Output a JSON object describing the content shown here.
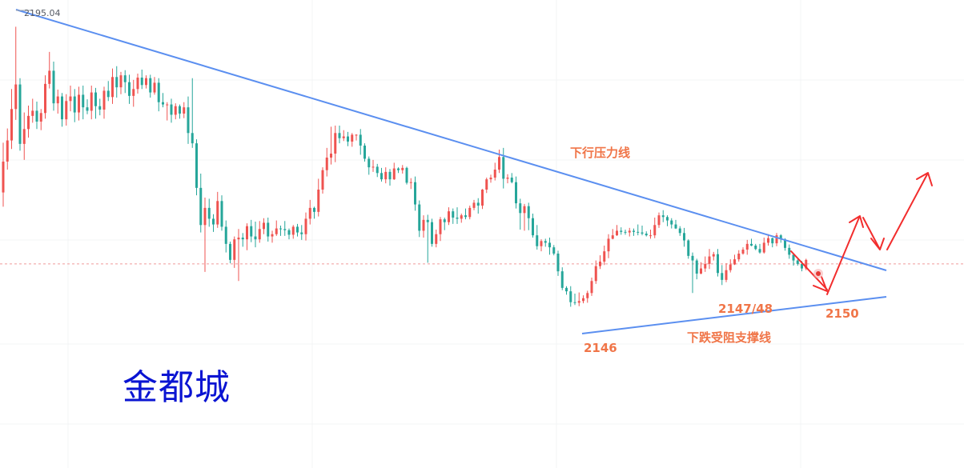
{
  "watermark": "金都城",
  "chart_data": {
    "type": "candlestick",
    "y_domain": [
      2142.0,
      2198.0
    ],
    "high_marker": {
      "label": "2195.04",
      "value": 2195.04
    },
    "current_price_line": 2153.5,
    "colors": {
      "up": "#ef5350",
      "down": "#26a69a",
      "trendline": "#5b8ff0",
      "annotation": "#f07548",
      "forecast_arrow": "#f22d2d",
      "price_line": "#ef9a9a",
      "grid": "#f3f4f6"
    },
    "candles": [
      [
        2166.0,
        2171.4,
        2163.5,
        2174.7
      ],
      [
        2171.4,
        2175.1,
        2170.0,
        2177.2
      ],
      [
        2175.1,
        2180.6,
        2173.6,
        2184.1
      ],
      [
        2180.6,
        2184.9,
        2178.7,
        2195.0
      ],
      [
        2184.9,
        2174.5,
        2173.3,
        2186.0
      ],
      [
        2174.5,
        2177.1,
        2171.7,
        2180.0
      ],
      [
        2177.1,
        2179.4,
        2175.6,
        2181.2
      ],
      [
        2179.4,
        2180.3,
        2178.2,
        2182.4
      ],
      [
        2180.3,
        2178.4,
        2177.1,
        2181.9
      ],
      [
        2178.4,
        2179.9,
        2176.9,
        2180.6
      ],
      [
        2179.9,
        2185.0,
        2178.9,
        2186.5
      ],
      [
        2185.0,
        2187.3,
        2184.2,
        2190.6
      ],
      [
        2187.3,
        2181.6,
        2180.3,
        2188.9
      ],
      [
        2181.6,
        2182.8,
        2179.8,
        2184.0
      ],
      [
        2182.8,
        2178.8,
        2177.5,
        2183.4
      ],
      [
        2178.8,
        2182.0,
        2177.7,
        2183.2
      ],
      [
        2182.0,
        2182.8,
        2180.2,
        2184.7
      ],
      [
        2182.8,
        2180.0,
        2178.3,
        2184.1
      ],
      [
        2180.0,
        2183.1,
        2178.6,
        2184.5
      ],
      [
        2183.1,
        2180.9,
        2178.8,
        2184.7
      ],
      [
        2180.9,
        2180.3,
        2179.7,
        2182.3
      ],
      [
        2180.3,
        2183.5,
        2178.8,
        2184.7
      ],
      [
        2183.5,
        2181.1,
        2178.9,
        2184.3
      ],
      [
        2181.1,
        2180.5,
        2179.5,
        2182.4
      ],
      [
        2180.5,
        2183.8,
        2178.9,
        2184.5
      ],
      [
        2183.8,
        2182.7,
        2182.0,
        2185.5
      ],
      [
        2182.7,
        2186.2,
        2181.5,
        2187.7
      ],
      [
        2186.2,
        2184.4,
        2182.6,
        2188.1
      ],
      [
        2184.4,
        2186.5,
        2183.2,
        2187.1
      ],
      [
        2186.5,
        2185.3,
        2183.4,
        2187.4
      ],
      [
        2185.3,
        2182.9,
        2181.5,
        2186.6
      ],
      [
        2182.9,
        2184.1,
        2181.0,
        2185.7
      ],
      [
        2184.1,
        2186.1,
        2183.3,
        2186.8
      ],
      [
        2186.1,
        2184.8,
        2184.1,
        2187.5
      ],
      [
        2184.8,
        2186.0,
        2184.2,
        2186.5
      ],
      [
        2186.0,
        2183.5,
        2182.6,
        2186.6
      ],
      [
        2183.5,
        2185.2,
        2183.1,
        2186.2
      ],
      [
        2185.2,
        2181.8,
        2180.2,
        2186.0
      ],
      [
        2181.8,
        2181.4,
        2180.9,
        2183.4
      ],
      [
        2181.4,
        2181.4,
        2178.6,
        2181.8
      ],
      [
        2181.4,
        2179.6,
        2178.2,
        2182.4
      ],
      [
        2179.6,
        2181.1,
        2178.8,
        2181.6
      ],
      [
        2181.1,
        2179.8,
        2178.9,
        2181.4
      ],
      [
        2179.8,
        2180.9,
        2179.0,
        2181.8
      ],
      [
        2180.9,
        2176.4,
        2174.5,
        2182.8
      ],
      [
        2176.4,
        2174.6,
        2173.8,
        2186.0
      ],
      [
        2174.6,
        2166.8,
        2165.5,
        2175.3
      ],
      [
        2166.8,
        2160.3,
        2159.0,
        2169.3
      ],
      [
        2160.3,
        2163.3,
        2152.1,
        2165.1
      ],
      [
        2163.3,
        2161.4,
        2160.0,
        2164.9
      ],
      [
        2161.4,
        2160.4,
        2159.1,
        2162.2
      ],
      [
        2160.4,
        2164.5,
        2159.8,
        2166.1
      ],
      [
        2164.5,
        2160.0,
        2159.3,
        2165.5
      ],
      [
        2160.0,
        2157.0,
        2155.5,
        2161.1
      ],
      [
        2157.0,
        2154.2,
        2153.6,
        2157.4
      ],
      [
        2154.2,
        2157.8,
        2152.8,
        2158.3
      ],
      [
        2157.8,
        2158.1,
        2150.5,
        2159.6
      ],
      [
        2158.1,
        2157.8,
        2156.5,
        2158.9
      ],
      [
        2157.8,
        2160.1,
        2155.9,
        2160.6
      ],
      [
        2160.1,
        2158.3,
        2157.3,
        2161.2
      ],
      [
        2158.3,
        2157.8,
        2156.4,
        2160.9
      ],
      [
        2157.8,
        2159.6,
        2157.2,
        2161.0
      ],
      [
        2159.6,
        2160.7,
        2158.7,
        2161.5
      ],
      [
        2160.7,
        2158.3,
        2157.4,
        2161.6
      ],
      [
        2158.3,
        2158.7,
        2157.2,
        2159.3
      ],
      [
        2158.7,
        2159.7,
        2158.4,
        2161.1
      ],
      [
        2159.7,
        2159.6,
        2158.4,
        2160.2
      ],
      [
        2159.6,
        2159.4,
        2158.4,
        2161.0
      ],
      [
        2159.4,
        2158.6,
        2157.8,
        2159.7
      ],
      [
        2158.6,
        2160.0,
        2157.9,
        2160.3
      ],
      [
        2160.0,
        2159.0,
        2158.3,
        2160.5
      ],
      [
        2159.0,
        2158.7,
        2157.7,
        2160.3
      ],
      [
        2158.7,
        2161.4,
        2157.6,
        2162.5
      ],
      [
        2161.4,
        2163.3,
        2160.4,
        2164.7
      ],
      [
        2163.3,
        2162.6,
        2161.4,
        2163.5
      ],
      [
        2162.6,
        2166.5,
        2161.8,
        2168.4
      ],
      [
        2166.5,
        2169.9,
        2165.8,
        2170.4
      ],
      [
        2169.9,
        2172.1,
        2168.8,
        2173.8
      ],
      [
        2172.1,
        2172.8,
        2170.9,
        2177.5
      ],
      [
        2172.8,
        2176.4,
        2171.3,
        2177.7
      ],
      [
        2176.4,
        2175.5,
        2174.6,
        2177.7
      ],
      [
        2175.5,
        2175.8,
        2175.0,
        2176.9
      ],
      [
        2175.8,
        2174.9,
        2174.1,
        2176.6
      ],
      [
        2174.9,
        2176.1,
        2174.0,
        2176.4
      ],
      [
        2176.1,
        2176.1,
        2175.1,
        2176.2
      ],
      [
        2176.1,
        2174.2,
        2172.6,
        2177.1
      ],
      [
        2174.2,
        2171.9,
        2171.4,
        2174.6
      ],
      [
        2171.9,
        2170.4,
        2169.1,
        2172.3
      ],
      [
        2170.4,
        2170.5,
        2169.6,
        2171.7
      ],
      [
        2170.5,
        2169.4,
        2168.7,
        2171.0
      ],
      [
        2169.4,
        2168.3,
        2167.9,
        2170.3
      ],
      [
        2168.3,
        2169.6,
        2167.6,
        2170.4
      ],
      [
        2169.6,
        2168.3,
        2167.2,
        2170.1
      ],
      [
        2168.3,
        2170.2,
        2168.2,
        2171.2
      ],
      [
        2170.2,
        2169.9,
        2169.4,
        2170.4
      ],
      [
        2169.9,
        2170.3,
        2169.3,
        2170.8
      ],
      [
        2170.3,
        2167.7,
        2167.4,
        2170.5
      ],
      [
        2167.7,
        2167.8,
        2166.6,
        2168.5
      ],
      [
        2167.8,
        2163.9,
        2162.8,
        2168.8
      ],
      [
        2163.9,
        2159.3,
        2158.2,
        2164.6
      ],
      [
        2159.3,
        2161.2,
        2158.1,
        2162.0
      ],
      [
        2161.2,
        2160.8,
        2153.7,
        2162.1
      ],
      [
        2160.8,
        2157.0,
        2156.5,
        2161.4
      ],
      [
        2157.0,
        2158.7,
        2156.4,
        2159.5
      ],
      [
        2158.7,
        2161.3,
        2157.5,
        2161.7
      ],
      [
        2161.3,
        2160.8,
        2159.4,
        2161.6
      ],
      [
        2160.8,
        2162.7,
        2160.3,
        2163.4
      ],
      [
        2162.7,
        2161.6,
        2160.5,
        2163.2
      ],
      [
        2161.6,
        2161.4,
        2160.5,
        2163.4
      ],
      [
        2161.4,
        2162.0,
        2160.7,
        2162.3
      ],
      [
        2162.0,
        2161.7,
        2161.3,
        2163.2
      ],
      [
        2161.7,
        2163.3,
        2161.3,
        2163.7
      ],
      [
        2163.3,
        2164.2,
        2162.9,
        2164.7
      ],
      [
        2164.2,
        2163.7,
        2162.3,
        2165.0
      ],
      [
        2163.7,
        2166.5,
        2163.1,
        2166.6
      ],
      [
        2166.5,
        2168.3,
        2165.9,
        2168.6
      ],
      [
        2168.3,
        2168.6,
        2167.7,
        2169.1
      ],
      [
        2168.6,
        2170.0,
        2168.1,
        2171.2
      ],
      [
        2170.0,
        2172.2,
        2169.4,
        2173.5
      ],
      [
        2172.2,
        2168.4,
        2166.7,
        2173.8
      ],
      [
        2168.4,
        2168.6,
        2167.6,
        2169.2
      ],
      [
        2168.6,
        2167.8,
        2167.6,
        2169.4
      ],
      [
        2167.8,
        2164.1,
        2163.2,
        2168.8
      ],
      [
        2164.1,
        2162.4,
        2159.5,
        2164.9
      ],
      [
        2162.4,
        2163.6,
        2159.3,
        2164.0
      ],
      [
        2163.6,
        2161.5,
        2159.4,
        2164.2
      ],
      [
        2161.5,
        2158.5,
        2158.1,
        2162.3
      ],
      [
        2158.5,
        2156.6,
        2156.0,
        2160.3
      ],
      [
        2156.6,
        2157.5,
        2155.7,
        2157.8
      ],
      [
        2157.5,
        2157.2,
        2156.5,
        2157.9
      ],
      [
        2157.2,
        2156.4,
        2155.1,
        2158.1
      ],
      [
        2156.4,
        2155.3,
        2155.0,
        2156.8
      ],
      [
        2155.3,
        2152.2,
        2151.4,
        2155.8
      ],
      [
        2152.2,
        2149.3,
        2148.9,
        2152.9
      ],
      [
        2149.3,
        2148.7,
        2148.1,
        2149.6
      ],
      [
        2148.7,
        2146.8,
        2146.0,
        2149.6
      ],
      [
        2146.8,
        2146.7,
        2146.3,
        2148.3
      ],
      [
        2146.7,
        2147.0,
        2146.1,
        2148.5
      ],
      [
        2147.0,
        2147.5,
        2146.6,
        2148.0
      ],
      [
        2147.5,
        2148.4,
        2146.7,
        2148.8
      ],
      [
        2148.4,
        2150.5,
        2147.9,
        2151.1
      ],
      [
        2150.5,
        2153.1,
        2150.0,
        2154.1
      ],
      [
        2153.1,
        2153.9,
        2152.6,
        2155.0
      ],
      [
        2153.9,
        2155.7,
        2153.3,
        2156.7
      ],
      [
        2155.7,
        2157.9,
        2154.5,
        2158.7
      ],
      [
        2157.9,
        2158.5,
        2157.8,
        2159.6
      ],
      [
        2158.5,
        2159.3,
        2158.4,
        2160.3
      ],
      [
        2159.3,
        2159.1,
        2158.6,
        2159.9
      ],
      [
        2159.1,
        2159.0,
        2158.6,
        2159.5
      ],
      [
        2159.0,
        2159.3,
        2158.3,
        2159.8
      ],
      [
        2159.3,
        2159.1,
        2158.4,
        2159.7
      ],
      [
        2159.1,
        2159.0,
        2158.5,
        2160.4
      ],
      [
        2159.0,
        2158.8,
        2158.5,
        2160.2
      ],
      [
        2158.8,
        2158.5,
        2158.3,
        2159.2
      ],
      [
        2158.5,
        2158.5,
        2157.9,
        2159.5
      ],
      [
        2158.5,
        2160.3,
        2158.0,
        2161.6
      ],
      [
        2160.3,
        2162.0,
        2159.8,
        2162.5
      ],
      [
        2162.0,
        2161.7,
        2160.8,
        2162.9
      ],
      [
        2161.7,
        2161.1,
        2160.1,
        2162.0
      ],
      [
        2161.1,
        2160.4,
        2159.7,
        2161.5
      ],
      [
        2160.4,
        2159.7,
        2159.6,
        2161.2
      ],
      [
        2159.7,
        2158.9,
        2158.4,
        2160.1
      ],
      [
        2158.9,
        2157.6,
        2156.5,
        2159.8
      ],
      [
        2157.6,
        2154.9,
        2154.4,
        2157.8
      ],
      [
        2154.9,
        2154.1,
        2148.4,
        2155.5
      ],
      [
        2154.1,
        2151.8,
        2150.8,
        2154.4
      ],
      [
        2151.8,
        2152.7,
        2151.7,
        2153.8
      ],
      [
        2152.7,
        2153.5,
        2152.1,
        2154.8
      ],
      [
        2153.5,
        2154.8,
        2152.6,
        2156.1
      ],
      [
        2154.8,
        2155.2,
        2154.1,
        2155.6
      ],
      [
        2155.2,
        2151.9,
        2151.3,
        2156.1
      ],
      [
        2151.9,
        2150.7,
        2149.8,
        2153.3
      ],
      [
        2150.7,
        2152.4,
        2150.3,
        2153.6
      ],
      [
        2152.4,
        2153.4,
        2152.0,
        2154.3
      ],
      [
        2153.4,
        2154.3,
        2153.3,
        2155.1
      ],
      [
        2154.3,
        2155.3,
        2153.9,
        2155.9
      ],
      [
        2155.3,
        2156.0,
        2155.1,
        2156.4
      ],
      [
        2156.0,
        2157.0,
        2155.1,
        2157.7
      ],
      [
        2157.0,
        2156.7,
        2156.6,
        2157.9
      ],
      [
        2156.7,
        2156.1,
        2155.9,
        2157.0
      ],
      [
        2156.1,
        2155.5,
        2155.3,
        2157.0
      ],
      [
        2155.5,
        2157.2,
        2155.3,
        2158.1
      ],
      [
        2157.2,
        2158.0,
        2156.7,
        2158.7
      ],
      [
        2158.0,
        2157.1,
        2156.4,
        2158.1
      ],
      [
        2157.1,
        2158.5,
        2156.6,
        2158.9
      ],
      [
        2158.5,
        2157.8,
        2157.2,
        2158.7
      ],
      [
        2157.8,
        2156.3,
        2155.8,
        2158.0
      ],
      [
        2156.3,
        2155.1,
        2154.4,
        2156.9
      ],
      [
        2155.1,
        2154.1,
        2153.2,
        2155.3
      ],
      [
        2154.1,
        2153.5,
        2153.2,
        2154.3
      ],
      [
        2153.5,
        2152.7,
        2152.2,
        2154.0
      ],
      [
        2152.7,
        2154.2,
        2152.4,
        2154.4
      ]
    ]
  },
  "labels": {
    "resistance": "下行压力线",
    "support": "下跌受阻支撑线",
    "low_2146": "2146",
    "low_214748": "2147/48",
    "target_2150": "2150"
  }
}
